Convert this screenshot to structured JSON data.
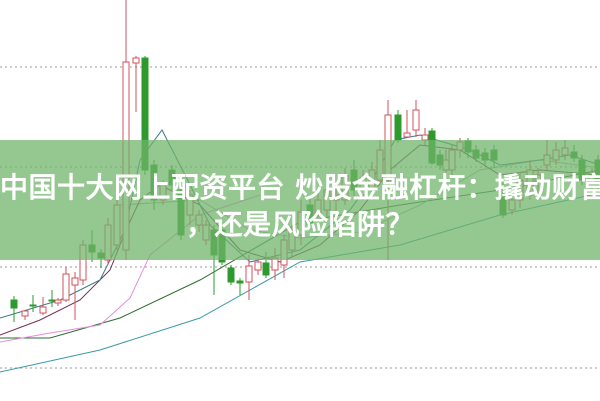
{
  "article": {
    "title_line1": "中国十大网上配资平台 炒股金融杠杆：撬动财富",
    "title_line2": "，还是风险陷阱？"
  },
  "chart": {
    "type": "candlestick",
    "up_color": "#d0525e",
    "down_color": "#2e9a2e",
    "banner_color": "#70b46a",
    "grid": "dotted horizontal"
  }
}
